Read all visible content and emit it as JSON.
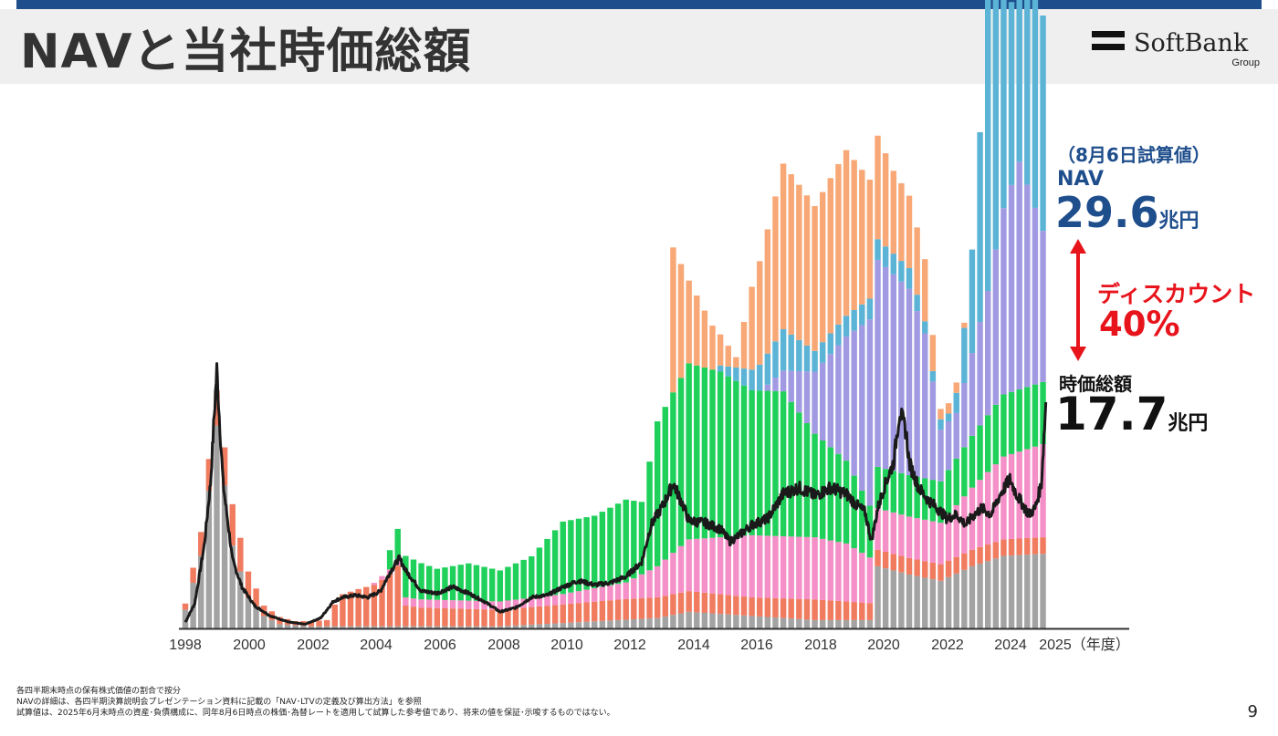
{
  "page": {
    "title": "NAVと当社時価総額",
    "page_number": "9"
  },
  "logo": {
    "name": "SoftBank",
    "sub": "Group"
  },
  "annotations": {
    "date_note": "（8月6日試算値）",
    "nav_label": "NAV",
    "nav_value": "29.6",
    "nav_unit": "兆円",
    "discount_label": "ディスカウント",
    "discount_value": "40%",
    "mcap_label": "時価総額",
    "mcap_value": "17.7",
    "mcap_unit": "兆円"
  },
  "footnotes": [
    "各四半期末時点の保有株式価値の割合で按分",
    "NAVの詳細は、各四半期決算説明会プレゼンテーション資料に記載の「NAV･LTVの定義及び算出方法」を参照",
    "試算値は、2025年6月末時点の資産･負債構成に、同年8月6日時点の株価･為替レートを適用して試算した参考値であり、将来の値を保証･示唆するものではない。"
  ],
  "colors": {
    "gray": "#a3a3a3",
    "salmon": "#f07b5f",
    "pink": "#f48fc8",
    "green": "#1fd05a",
    "purple": "#a19ae2",
    "blue": "#5bb3d6",
    "orange": "#f8a876",
    "line": "#1a1a1a",
    "axis": "#333333",
    "arrow": "#e8141c"
  },
  "chart_data": {
    "type": "stacked-bar + line",
    "x_ticks": [
      "1998",
      "2000",
      "2002",
      "2004",
      "2006",
      "2008",
      "2010",
      "2012",
      "2014",
      "2016",
      "2018",
      "2020",
      "2022",
      "2024",
      "2025（年度）"
    ],
    "y_unit": "兆円",
    "series": [
      {
        "key": "gray",
        "color": "#a3a3a3",
        "points": [
          [
            1998.0,
            0.9
          ],
          [
            1998.5,
            3.5
          ],
          [
            1999.0,
            9.8
          ],
          [
            1999.5,
            4
          ],
          [
            2000.0,
            1.5
          ],
          [
            2000.5,
            0.6
          ],
          [
            2001.0,
            0.2
          ],
          [
            2002.0,
            0.1
          ],
          [
            2004.0,
            0.1
          ],
          [
            2008.0,
            0.1
          ],
          [
            2013.0,
            0.5
          ],
          [
            2014.0,
            0.8
          ],
          [
            2016.0,
            0.6
          ],
          [
            2018.0,
            0.4
          ],
          [
            2019.9,
            0.4
          ],
          [
            2020.0,
            3
          ],
          [
            2021.0,
            2.6
          ],
          [
            2022.0,
            2.3
          ],
          [
            2023.0,
            3
          ],
          [
            2024.0,
            3.5
          ],
          [
            2025.25,
            3.6
          ]
        ]
      },
      {
        "key": "salmon",
        "color": "#f07b5f",
        "points": [
          [
            1998.0,
            0.3
          ],
          [
            1998.7,
            1.5
          ],
          [
            1999.5,
            2
          ],
          [
            2000.5,
            0.5
          ],
          [
            2001.5,
            0.2
          ],
          [
            2002.5,
            0.3
          ],
          [
            2002.9,
            1.5
          ],
          [
            2003.5,
            1.8
          ],
          [
            2004.0,
            2
          ],
          [
            2004.5,
            2.5
          ],
          [
            2004.8,
            3
          ],
          [
            2005.0,
            1
          ],
          [
            2005.5,
            0.9
          ],
          [
            2008.0,
            0.8
          ],
          [
            2010.0,
            0.9
          ],
          [
            2012.0,
            1
          ],
          [
            2014.0,
            1
          ],
          [
            2016.0,
            0.9
          ],
          [
            2018.0,
            1
          ],
          [
            2020.0,
            0.8
          ],
          [
            2022.0,
            0.8
          ],
          [
            2025.25,
            0.8
          ]
        ]
      },
      {
        "key": "pink",
        "color": "#f48fc8",
        "points": [
          [
            2004.0,
            0.1
          ],
          [
            2005.0,
            0.4
          ],
          [
            2008.0,
            0.4
          ],
          [
            2010.0,
            0.5
          ],
          [
            2012.0,
            0.8
          ],
          [
            2013.0,
            1.5
          ],
          [
            2014.0,
            2.5
          ],
          [
            2016.0,
            3
          ],
          [
            2018.0,
            3
          ],
          [
            2019.0,
            2.8
          ],
          [
            2020.0,
            2
          ],
          [
            2021.0,
            2
          ],
          [
            2022.0,
            2
          ],
          [
            2023.0,
            3
          ],
          [
            2024.0,
            4
          ],
          [
            2025.25,
            4.5
          ]
        ]
      },
      {
        "key": "green",
        "color": "#1fd05a",
        "points": [
          [
            2004.3,
            0.5
          ],
          [
            2005.0,
            2
          ],
          [
            2006.0,
            1.5
          ],
          [
            2007.0,
            1.8
          ],
          [
            2008.0,
            1.5
          ],
          [
            2009.0,
            2
          ],
          [
            2010.0,
            3.5
          ],
          [
            2011.0,
            3.5
          ],
          [
            2012.0,
            4
          ],
          [
            2012.5,
            3.5
          ],
          [
            2013.0,
            7
          ],
          [
            2014.0,
            8.5
          ],
          [
            2015.0,
            8
          ],
          [
            2016.0,
            7
          ],
          [
            2017.0,
            7
          ],
          [
            2018.0,
            5
          ],
          [
            2019.0,
            4
          ],
          [
            2020.0,
            2
          ],
          [
            2021.0,
            2
          ],
          [
            2022.0,
            2
          ],
          [
            2023.0,
            2.5
          ],
          [
            2024.0,
            3
          ],
          [
            2025.25,
            3
          ]
        ]
      },
      {
        "key": "purple",
        "color": "#a19ae2",
        "points": [
          [
            2016.5,
            0.3
          ],
          [
            2017.0,
            1
          ],
          [
            2018.0,
            3
          ],
          [
            2019.0,
            6
          ],
          [
            2020.0,
            10
          ],
          [
            2021.0,
            9
          ],
          [
            2021.5,
            7
          ],
          [
            2022.0,
            2.5
          ],
          [
            2022.5,
            2.2
          ],
          [
            2023.0,
            4
          ],
          [
            2023.5,
            6
          ],
          [
            2024.0,
            9
          ],
          [
            2024.5,
            11
          ],
          [
            2025.25,
            7.3
          ]
        ]
      },
      {
        "key": "blue",
        "color": "#5bb3d6",
        "points": [
          [
            2015.0,
            0.3
          ],
          [
            2016.0,
            1
          ],
          [
            2017.0,
            2
          ],
          [
            2018.0,
            1
          ],
          [
            2019.0,
            1
          ],
          [
            2020.0,
            1
          ],
          [
            2021.0,
            1
          ],
          [
            2021.6,
            0.5
          ],
          [
            2022.0,
            0.5
          ],
          [
            2022.4,
            0.3
          ],
          [
            2022.8,
            3
          ],
          [
            2023.0,
            5
          ],
          [
            2023.3,
            10
          ],
          [
            2023.5,
            18
          ],
          [
            2023.7,
            14
          ],
          [
            2024.0,
            13
          ],
          [
            2024.3,
            8
          ],
          [
            2024.5,
            14
          ],
          [
            2024.8,
            12
          ],
          [
            2025.25,
            10.4
          ]
        ]
      },
      {
        "key": "orange",
        "color": "#f8a876",
        "points": [
          [
            2013.5,
            7
          ],
          [
            2014.0,
            4
          ],
          [
            2015.0,
            1.5
          ],
          [
            2015.5,
            0.5
          ],
          [
            2016.0,
            4
          ],
          [
            2017.0,
            8
          ],
          [
            2018.0,
            7
          ],
          [
            2019.0,
            8
          ],
          [
            2020.0,
            5
          ],
          [
            2020.5,
            4
          ],
          [
            2021.0,
            3.5
          ],
          [
            2021.5,
            3
          ],
          [
            2022.0,
            0.5
          ],
          [
            2022.5,
            0.5
          ],
          [
            2023.0,
            0
          ]
        ]
      }
    ],
    "nav_line": {
      "color": "#1a1a1a",
      "points": [
        [
          1998.0,
          0.3
        ],
        [
          1998.3,
          1.2
        ],
        [
          1998.6,
          4
        ],
        [
          1998.8,
          7
        ],
        [
          1999.0,
          12.5
        ],
        [
          1999.2,
          7
        ],
        [
          1999.5,
          3.3
        ],
        [
          1999.8,
          2
        ],
        [
          2000.2,
          1.1
        ],
        [
          2000.7,
          0.6
        ],
        [
          2001.3,
          0.3
        ],
        [
          2001.8,
          0.2
        ],
        [
          2002.3,
          0.5
        ],
        [
          2002.7,
          1.3
        ],
        [
          2003.0,
          1.5
        ],
        [
          2003.4,
          1.6
        ],
        [
          2003.8,
          1.5
        ],
        [
          2004.2,
          1.8
        ],
        [
          2004.5,
          2.7
        ],
        [
          2004.8,
          3.4
        ],
        [
          2005.0,
          2.8
        ],
        [
          2005.5,
          1.8
        ],
        [
          2006.0,
          1.7
        ],
        [
          2006.5,
          2
        ],
        [
          2007.0,
          1.7
        ],
        [
          2007.5,
          1.3
        ],
        [
          2008.0,
          0.8
        ],
        [
          2008.5,
          1
        ],
        [
          2009.0,
          1.5
        ],
        [
          2009.5,
          1.6
        ],
        [
          2010.0,
          2
        ],
        [
          2010.5,
          2.3
        ],
        [
          2011.0,
          2.1
        ],
        [
          2011.5,
          2.2
        ],
        [
          2012.0,
          2.5
        ],
        [
          2012.5,
          3.2
        ],
        [
          2012.8,
          5
        ],
        [
          2013.0,
          5.5
        ],
        [
          2013.2,
          6
        ],
        [
          2013.5,
          7
        ],
        [
          2013.8,
          6
        ],
        [
          2014.0,
          5.2
        ],
        [
          2014.5,
          5.1
        ],
        [
          2015.0,
          4.8
        ],
        [
          2015.3,
          4.2
        ],
        [
          2015.6,
          4.5
        ],
        [
          2016.0,
          5
        ],
        [
          2016.5,
          5.3
        ],
        [
          2017.0,
          6.5
        ],
        [
          2017.5,
          6.8
        ],
        [
          2018.0,
          6.4
        ],
        [
          2018.5,
          6.8
        ],
        [
          2019.0,
          6.5
        ],
        [
          2019.3,
          6
        ],
        [
          2019.6,
          5.6
        ],
        [
          2019.8,
          4.2
        ],
        [
          2020.0,
          5.8
        ],
        [
          2020.2,
          6.8
        ],
        [
          2020.5,
          8
        ],
        [
          2020.7,
          10.5
        ],
        [
          2020.9,
          9.5
        ],
        [
          2021.0,
          8
        ],
        [
          2021.3,
          6.8
        ],
        [
          2021.6,
          6.2
        ],
        [
          2021.9,
          5.8
        ],
        [
          2022.2,
          5.3
        ],
        [
          2022.5,
          5.5
        ],
        [
          2022.8,
          5
        ],
        [
          2023.0,
          5.4
        ],
        [
          2023.3,
          5.8
        ],
        [
          2023.6,
          5.5
        ],
        [
          2023.9,
          6.5
        ],
        [
          2024.2,
          7.2
        ],
        [
          2024.4,
          6.5
        ],
        [
          2024.6,
          6
        ],
        [
          2024.8,
          5.5
        ],
        [
          2025.0,
          5.8
        ],
        [
          2025.2,
          7
        ],
        [
          2025.35,
          11.2
        ]
      ]
    },
    "bar_totals_end": {
      "nav": 29.6,
      "market_cap": 17.7
    }
  }
}
